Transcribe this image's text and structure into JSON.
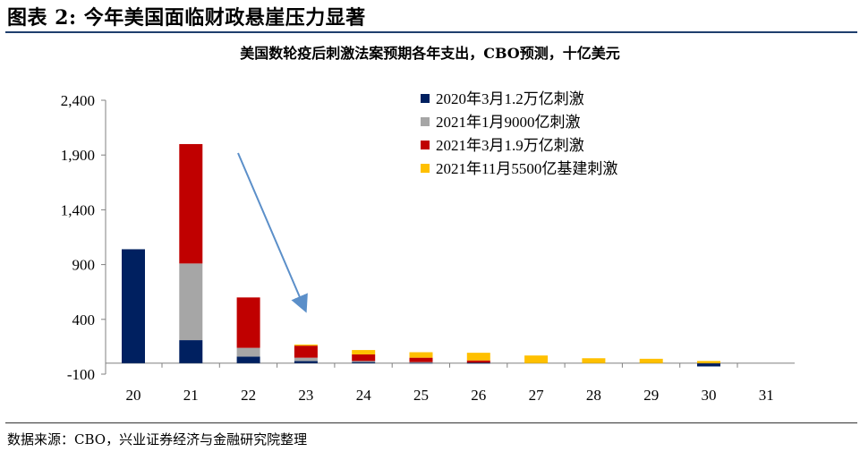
{
  "header": {
    "title": "图表 2:  今年美国面临财政悬崖压力显著"
  },
  "footer": {
    "source": "数据来源：CBO，兴业证券经济与金融研究院整理"
  },
  "colors": {
    "navy": "#002060",
    "gray": "#a6a6a6",
    "red": "#c00000",
    "yellow": "#ffc000",
    "arrow": "#5b8fc9",
    "axis": "#808080"
  },
  "chart_data": {
    "type": "bar",
    "stacked": true,
    "title": "美国数轮疫后刺激法案预期各年支出，CBO预测，十亿美元",
    "categories": [
      "20",
      "21",
      "22",
      "23",
      "24",
      "25",
      "26",
      "27",
      "28",
      "29",
      "30",
      "31"
    ],
    "ylim": [
      -100,
      2400
    ],
    "yticks": [
      -100,
      400,
      900,
      1400,
      1900,
      2400
    ],
    "ytick_labels": [
      "-100",
      "400",
      "900",
      "1,400",
      "1,900",
      "2,400"
    ],
    "legend_position": "top-right",
    "series": [
      {
        "name": "2020年3月1.2万亿刺激",
        "color": "navy",
        "values": [
          1040,
          210,
          60,
          20,
          10,
          5,
          5,
          0,
          0,
          0,
          -30,
          0
        ]
      },
      {
        "name": "2021年1月9000亿刺激",
        "color": "gray",
        "values": [
          0,
          700,
          80,
          30,
          10,
          5,
          0,
          0,
          0,
          0,
          0,
          0
        ]
      },
      {
        "name": "2021年3月1.9万亿刺激",
        "color": "red",
        "values": [
          0,
          1090,
          460,
          110,
          60,
          40,
          20,
          0,
          0,
          0,
          0,
          0
        ]
      },
      {
        "name": "2021年11月5500亿基建刺激",
        "color": "yellow",
        "values": [
          0,
          0,
          0,
          10,
          40,
          50,
          70,
          70,
          45,
          40,
          20,
          0
        ]
      }
    ],
    "annotation": {
      "type": "arrow",
      "description": "downward trend"
    }
  }
}
